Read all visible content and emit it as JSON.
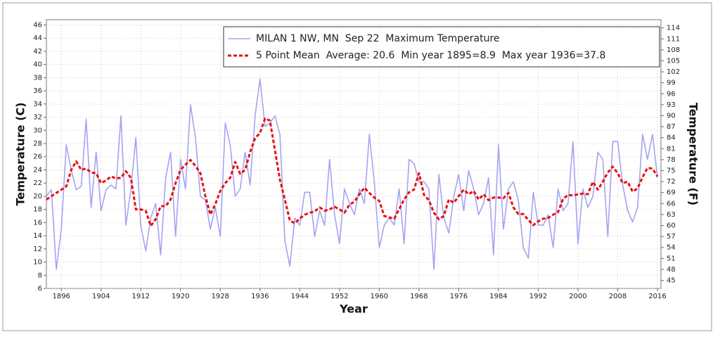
{
  "chart_data": {
    "type": "line",
    "xlabel": "Year",
    "ylabel": "Temperature (C)",
    "y2label": "Temperature (F)",
    "x": [
      1893,
      1894,
      1895,
      1896,
      1897,
      1898,
      1899,
      1900,
      1901,
      1902,
      1903,
      1904,
      1905,
      1906,
      1907,
      1908,
      1909,
      1910,
      1911,
      1912,
      1913,
      1914,
      1915,
      1916,
      1917,
      1918,
      1919,
      1920,
      1921,
      1922,
      1923,
      1924,
      1925,
      1926,
      1927,
      1928,
      1929,
      1930,
      1931,
      1932,
      1933,
      1934,
      1935,
      1936,
      1937,
      1938,
      1939,
      1940,
      1941,
      1942,
      1943,
      1944,
      1945,
      1946,
      1947,
      1948,
      1949,
      1950,
      1951,
      1952,
      1953,
      1954,
      1955,
      1956,
      1957,
      1958,
      1959,
      1960,
      1961,
      1962,
      1963,
      1964,
      1965,
      1966,
      1967,
      1968,
      1969,
      1970,
      1971,
      1972,
      1973,
      1974,
      1975,
      1976,
      1977,
      1978,
      1979,
      1980,
      1981,
      1982,
      1983,
      1984,
      1985,
      1986,
      1987,
      1988,
      1989,
      1990,
      1991,
      1992,
      1993,
      1994,
      1995,
      1996,
      1997,
      1998,
      1999,
      2000,
      2001,
      2002,
      2003,
      2004,
      2005,
      2006,
      2007,
      2008,
      2009,
      2010,
      2011,
      2012,
      2013,
      2014,
      2015,
      2016
    ],
    "series": [
      {
        "name": "MILAN 1 NW, MN  Sep 22  Maximum Temperature",
        "color": "#a4a4f2",
        "style": "solid",
        "values": [
          20,
          21,
          8.9,
          15,
          27.8,
          24,
          21,
          21.5,
          31.7,
          18.3,
          26.7,
          17.8,
          21,
          21.7,
          21.1,
          32.2,
          15.6,
          21,
          28.9,
          15.6,
          11.7,
          16.7,
          18.9,
          11.1,
          22.8,
          26.7,
          13.9,
          25.6,
          21.1,
          33.9,
          28.9,
          20,
          19.4,
          15,
          18.3,
          13.9,
          31.1,
          27.8,
          20,
          21.1,
          26.7,
          21.7,
          32.2,
          37.8,
          30.6,
          31.1,
          32.2,
          29.4,
          13.3,
          9.4,
          16.7,
          15.6,
          20.6,
          20.6,
          13.9,
          17.8,
          15.6,
          25.6,
          17.2,
          12.8,
          21.1,
          18.9,
          17.2,
          21.1,
          18.9,
          29.4,
          22.2,
          12.2,
          15.6,
          16.7,
          15.6,
          21.1,
          12.8,
          25.6,
          25,
          22.2,
          22.2,
          21.1,
          8.9,
          23.3,
          16.7,
          14.4,
          20,
          23.3,
          17.8,
          23.9,
          21.1,
          17.2,
          18.9,
          22.8,
          11.1,
          27.8,
          15,
          21.1,
          22.2,
          19.4,
          12.2,
          10.6,
          20.6,
          15.6,
          15.6,
          17.2,
          12.2,
          21.1,
          17.8,
          18.9,
          28.3,
          12.8,
          21.1,
          18.3,
          20,
          26.7,
          25.6,
          13.9,
          28.3,
          28.3,
          21.7,
          17.8,
          16.1,
          18.3,
          29.4,
          25.6,
          29.4,
          22.8
        ]
      },
      {
        "name": "5 Point Mean  Average: 20.6  Min year 1895=8.9  Max year 1936=37.8",
        "color": "#e81010",
        "style": "dashed",
        "values": [
          19.5,
          20,
          20.5,
          21,
          21.5,
          24,
          25.3,
          24,
          24.2,
          23.6,
          23.5,
          22,
          22.4,
          23,
          22.7,
          22.8,
          23.8,
          22.8,
          18,
          18,
          17.8,
          15.5,
          16.5,
          18.5,
          18.5,
          19.5,
          22,
          24,
          24.8,
          25.5,
          24.6,
          23.5,
          20,
          17.2,
          18.8,
          20.8,
          22,
          22.8,
          25.2,
          23.4,
          24,
          26.7,
          28.8,
          29.6,
          31.8,
          31.5,
          27,
          22.5,
          19.5,
          16.3,
          15.9,
          16.6,
          17.2,
          17.5,
          17.7,
          18.3,
          17.8,
          18,
          18.4,
          18,
          17.5,
          18.7,
          19.2,
          20.3,
          21.3,
          20.5,
          19.8,
          19.3,
          17,
          16.8,
          16.6,
          18,
          19.5,
          20.6,
          21,
          23.5,
          20.2,
          19.4,
          17.5,
          16.5,
          17,
          19.5,
          19,
          20,
          21,
          20.3,
          20.8,
          19.5,
          20.3,
          19.4,
          19.8,
          19.8,
          19.7,
          20.5,
          18.3,
          17.3,
          17.3,
          16.4,
          15.6,
          16.2,
          16.6,
          16.7,
          17.2,
          17.6,
          19.6,
          20.2,
          20.1,
          20.3,
          20.4,
          20.3,
          22.2,
          21,
          22.2,
          23.6,
          24.5,
          23.5,
          22,
          22.2,
          20.7,
          21.2,
          22.9,
          24.3,
          24.2,
          23
        ]
      }
    ],
    "xlim": [
      1893,
      2016.7
    ],
    "xticks": [
      1896,
      1904,
      1912,
      1920,
      1928,
      1936,
      1944,
      1952,
      1960,
      1968,
      1976,
      1984,
      1992,
      2000,
      2008,
      2016
    ],
    "ylim": [
      6,
      46.8
    ],
    "yticks": [
      6,
      8,
      10,
      12,
      14,
      16,
      18,
      20,
      22,
      24,
      26,
      28,
      30,
      32,
      34,
      36,
      38,
      40,
      42,
      44,
      46
    ],
    "y2lim": [
      42.8,
      116.24
    ],
    "y2ticks": [
      45,
      48,
      51,
      54,
      57,
      60,
      63,
      66,
      69,
      72,
      75,
      78,
      81,
      84,
      87,
      90,
      93,
      96,
      99,
      102,
      105,
      108,
      111,
      114
    ],
    "grid": true,
    "legend": "top-right"
  }
}
